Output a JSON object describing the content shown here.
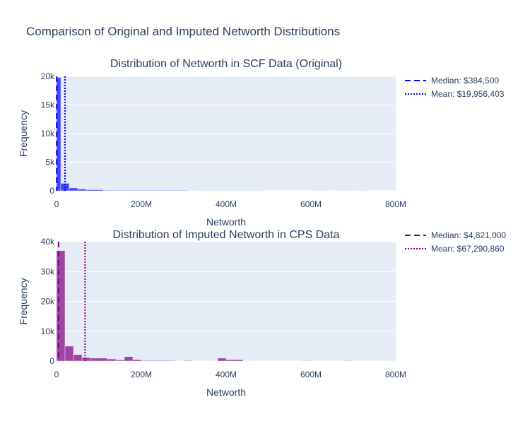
{
  "title": "Comparison of Original and Imputed Networth Distributions",
  "colors": {
    "plot_bg": "#e5ecf6",
    "grid": "#ffffff",
    "text": "#2a3f5f"
  },
  "chart_data": [
    {
      "type": "histogram",
      "title": "Distribution of Networth in SCF Data (Original)",
      "xlabel": "Networth",
      "ylabel": "Frequency",
      "xlim": [
        0,
        800000000
      ],
      "ylim": [
        0,
        20000
      ],
      "x_ticks": [
        {
          "value": 0,
          "label": "0"
        },
        {
          "value": 200000000,
          "label": "200M"
        },
        {
          "value": 400000000,
          "label": "400M"
        },
        {
          "value": 600000000,
          "label": "600M"
        },
        {
          "value": 800000000,
          "label": "800M"
        }
      ],
      "y_ticks": [
        {
          "value": 0,
          "label": "0"
        },
        {
          "value": 5000,
          "label": "5k"
        },
        {
          "value": 10000,
          "label": "10k"
        },
        {
          "value": 15000,
          "label": "15k"
        },
        {
          "value": 20000,
          "label": "20k"
        }
      ],
      "bar_color": "#0000ff",
      "bar_opacity": 0.7,
      "bins": [
        {
          "x0": 0,
          "x1": 10000000,
          "count": 19800
        },
        {
          "x0": 10000000,
          "x1": 30000000,
          "count": 1300
        },
        {
          "x0": 30000000,
          "x1": 50000000,
          "count": 500
        },
        {
          "x0": 50000000,
          "x1": 70000000,
          "count": 300
        },
        {
          "x0": 70000000,
          "x1": 110000000,
          "count": 180
        },
        {
          "x0": 110000000,
          "x1": 310000000,
          "count": 80
        },
        {
          "x0": 330000000,
          "x1": 490000000,
          "count": 60
        },
        {
          "x0": 610000000,
          "x1": 630000000,
          "count": 40
        },
        {
          "x0": 670000000,
          "x1": 690000000,
          "count": 40
        },
        {
          "x0": 710000000,
          "x1": 730000000,
          "count": 40
        }
      ],
      "lines": [
        {
          "name": "Median: $384,500",
          "value": 384500,
          "color": "#0000ff",
          "dash": "dash"
        },
        {
          "name": "Mean: $19,956,403",
          "value": 19956403,
          "color": "#0000ff",
          "dash": "dot"
        }
      ]
    },
    {
      "type": "histogram",
      "title": "Distribution of Imputed Networth in CPS Data",
      "xlabel": "Networth",
      "ylabel": "Frequency",
      "xlim": [
        0,
        800000000
      ],
      "ylim": [
        0,
        40000
      ],
      "x_ticks": [
        {
          "value": 0,
          "label": "0"
        },
        {
          "value": 200000000,
          "label": "200M"
        },
        {
          "value": 400000000,
          "label": "400M"
        },
        {
          "value": 600000000,
          "label": "600M"
        },
        {
          "value": 800000000,
          "label": "800M"
        }
      ],
      "y_ticks": [
        {
          "value": 0,
          "label": "0"
        },
        {
          "value": 10000,
          "label": "10k"
        },
        {
          "value": 20000,
          "label": "20k"
        },
        {
          "value": 30000,
          "label": "30k"
        },
        {
          "value": 40000,
          "label": "40k"
        }
      ],
      "bar_color": "#800080",
      "bar_opacity": 0.7,
      "bins": [
        {
          "x0": 0,
          "x1": 20000000,
          "count": 37000
        },
        {
          "x0": 20000000,
          "x1": 40000000,
          "count": 5000
        },
        {
          "x0": 40000000,
          "x1": 60000000,
          "count": 2200
        },
        {
          "x0": 60000000,
          "x1": 80000000,
          "count": 1200
        },
        {
          "x0": 80000000,
          "x1": 120000000,
          "count": 1000
        },
        {
          "x0": 120000000,
          "x1": 140000000,
          "count": 700
        },
        {
          "x0": 140000000,
          "x1": 160000000,
          "count": 400
        },
        {
          "x0": 160000000,
          "x1": 180000000,
          "count": 1500
        },
        {
          "x0": 180000000,
          "x1": 200000000,
          "count": 500
        },
        {
          "x0": 200000000,
          "x1": 280000000,
          "count": 200
        },
        {
          "x0": 300000000,
          "x1": 320000000,
          "count": 200
        },
        {
          "x0": 380000000,
          "x1": 400000000,
          "count": 1000
        },
        {
          "x0": 400000000,
          "x1": 440000000,
          "count": 500
        },
        {
          "x0": 580000000,
          "x1": 600000000,
          "count": 150
        },
        {
          "x0": 680000000,
          "x1": 700000000,
          "count": 150
        }
      ],
      "lines": [
        {
          "name": "Median: $4,821,000",
          "value": 4821000,
          "color": "#800080",
          "dash": "dash"
        },
        {
          "name": "Mean: $67,290,860",
          "value": 67290860,
          "color": "#800080",
          "dash": "dot"
        }
      ]
    }
  ]
}
